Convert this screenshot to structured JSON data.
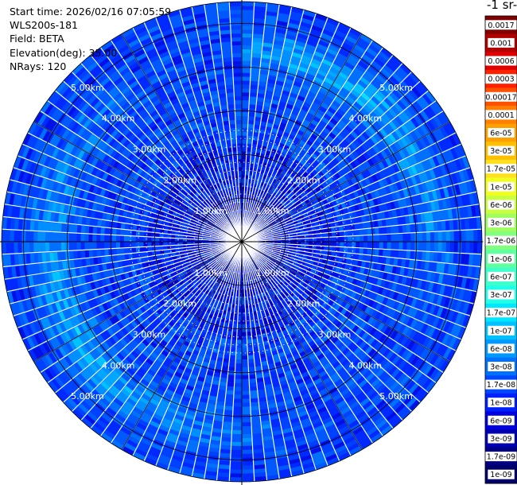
{
  "info": {
    "start_time": "Start time: 2026/02/16 07:05:59",
    "instrument": "WLS200s-181",
    "field": "Field: BETA",
    "elevation": "Elevation(deg): 35.00",
    "nrays": "NRays: 120"
  },
  "colorbar": {
    "title": "-1 sr-",
    "labels": [
      "0.0017",
      "0.001",
      "0.0006",
      "0.0003",
      "0.00017",
      "0.0001",
      "6e-05",
      "3e-05",
      "1.7e-05",
      "1e-05",
      "6e-06",
      "3e-06",
      "1.7e-06",
      "1e-06",
      "6e-07",
      "3e-07",
      "1.7e-07",
      "1e-07",
      "6e-08",
      "3e-08",
      "1.7e-08",
      "1e-08",
      "6e-09",
      "3e-09",
      "1.7e-09",
      "1e-09"
    ],
    "colors": [
      "#800000",
      "#b00000",
      "#e00000",
      "#ff2000",
      "#ff5000",
      "#ff8000",
      "#ffa000",
      "#ffc000",
      "#ffe020",
      "#f0ff20",
      "#c8ff40",
      "#a0ff60",
      "#80ff80",
      "#60ffa0",
      "#40ffc8",
      "#20ffe8",
      "#00e8ff",
      "#00c0ff",
      "#0098ff",
      "#0070ff",
      "#0048ff",
      "#0020ff",
      "#0000e0",
      "#0000b0",
      "#000080",
      "#00006a"
    ]
  },
  "chart_data": {
    "type": "polar-ppi",
    "nrays": 120,
    "max_range_km": 5.5,
    "ring_labels": [
      "1.00km",
      "2.00km",
      "3.00km",
      "4.00km",
      "5.00km"
    ],
    "ring_ranges_km": [
      1,
      2,
      3,
      4,
      5
    ],
    "field_range": [
      1e-09,
      0.0017
    ]
  }
}
